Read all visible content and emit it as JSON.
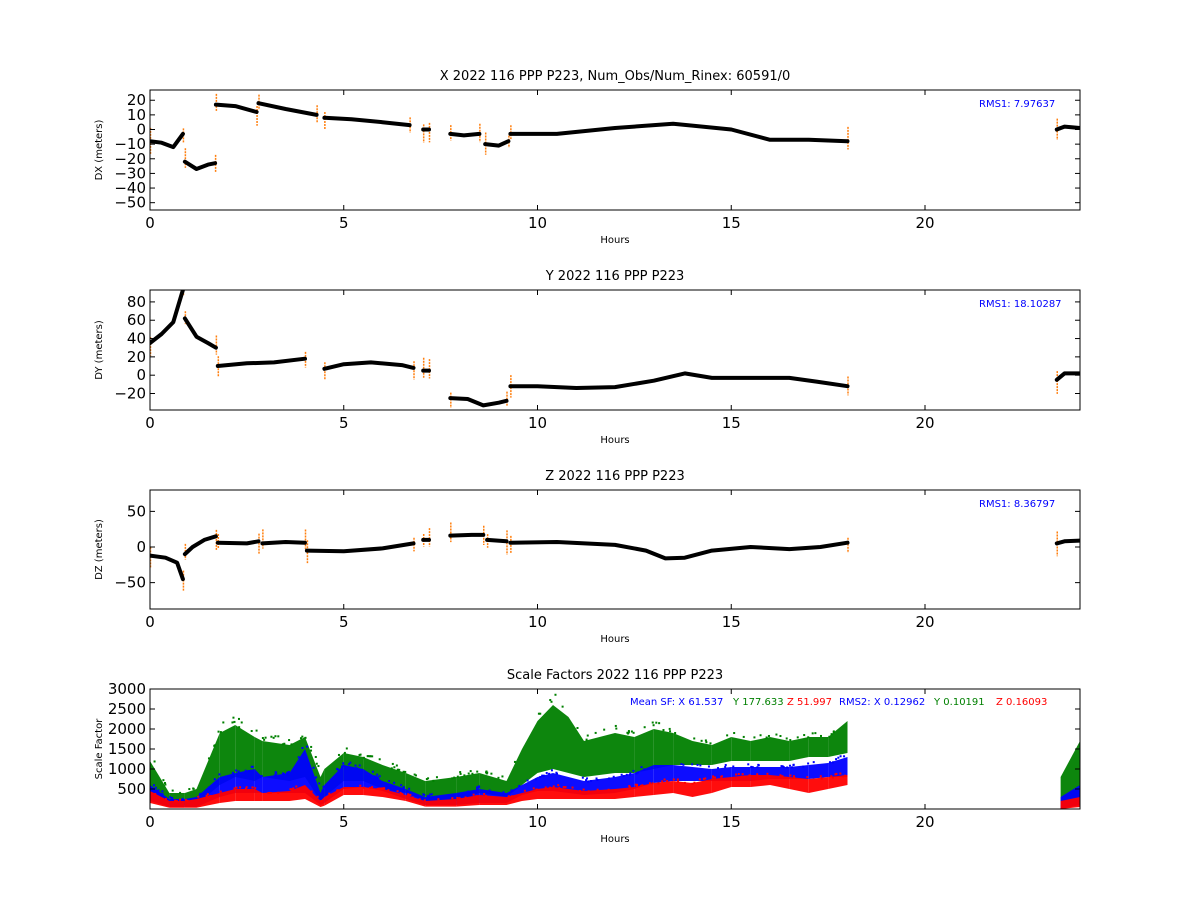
{
  "colors": {
    "fit": "#000000",
    "residual": "#ff7f0e",
    "rms_text": "#0000ff",
    "sf_x": "#0000ff",
    "sf_y": "#008000",
    "sf_z": "#ff0000"
  },
  "chart_data": [
    {
      "type": "scatter",
      "title": "X 2022 116 PPP  P223, Num_Obs/Num_Rinex: 60591/0",
      "xlabel": "Hours",
      "ylabel": "DX (meters)",
      "xlim": [
        0,
        24
      ],
      "ylim": [
        -55,
        27
      ],
      "xticks": [
        0,
        5,
        10,
        15,
        20
      ],
      "xtick_labels": [
        "0",
        "5",
        "10",
        "15",
        "20"
      ],
      "yticks": [
        20,
        10,
        0,
        -10,
        -20,
        -30,
        -40,
        -50
      ],
      "ytick_labels": [
        "20",
        "10",
        "0",
        "−10",
        "−20",
        "−30",
        "−40",
        "−50"
      ],
      "annotation": "RMS1:  7.97637",
      "annotation_color": "#0000ff",
      "series": [
        {
          "x": [
            0,
            0.3,
            0.6,
            0.85
          ],
          "y": [
            -8,
            -9,
            -12,
            -3
          ]
        },
        {
          "x": [
            0.9,
            1.2,
            1.5,
            1.68
          ],
          "y": [
            -22,
            -27,
            -24,
            -23
          ]
        },
        {
          "x": [
            1.7,
            2.2,
            2.75
          ],
          "y": [
            17,
            16,
            12
          ]
        },
        {
          "x": [
            2.8,
            3.5,
            4.3
          ],
          "y": [
            18,
            14,
            10
          ]
        },
        {
          "x": [
            4.5,
            5.2,
            6,
            6.7
          ],
          "y": [
            8,
            7,
            5,
            3
          ]
        },
        {
          "x": [
            7.05,
            7.2
          ],
          "y": [
            0,
            0
          ]
        },
        {
          "x": [
            7.75,
            8.1,
            8.5
          ],
          "y": [
            -3,
            -4,
            -3
          ]
        },
        {
          "x": [
            8.65,
            9.0,
            9.25
          ],
          "y": [
            -10,
            -11,
            -8
          ]
        },
        {
          "x": [
            9.3,
            10.5,
            12,
            13.5,
            15,
            16,
            17,
            18
          ],
          "y": [
            -3,
            -3,
            1,
            4,
            0,
            -7,
            -7,
            -8
          ]
        },
        {
          "x": [
            23.4,
            23.6,
            24
          ],
          "y": [
            0,
            2,
            1
          ]
        }
      ]
    },
    {
      "type": "scatter",
      "title": "Y 2022 116 PPP  P223",
      "xlabel": "Hours",
      "ylabel": "DY (meters)",
      "xlim": [
        0,
        24
      ],
      "ylim": [
        -38,
        93
      ],
      "xticks": [
        0,
        5,
        10,
        15,
        20
      ],
      "xtick_labels": [
        "0",
        "5",
        "10",
        "15",
        "20"
      ],
      "yticks": [
        80,
        60,
        40,
        20,
        0,
        -20
      ],
      "ytick_labels": [
        "80",
        "60",
        "40",
        "20",
        "0",
        "−20"
      ],
      "annotation": "RMS1: 18.10287",
      "annotation_color": "#0000ff",
      "series": [
        {
          "x": [
            0,
            0.3,
            0.6,
            0.85
          ],
          "y": [
            35,
            45,
            58,
            93
          ]
        },
        {
          "x": [
            0.9,
            1.2,
            1.5,
            1.7
          ],
          "y": [
            62,
            42,
            35,
            30
          ]
        },
        {
          "x": [
            1.75,
            2.5,
            3.2,
            4
          ],
          "y": [
            10,
            13,
            14,
            18
          ]
        },
        {
          "x": [
            4.5,
            5,
            5.7,
            6.5,
            6.8
          ],
          "y": [
            7,
            12,
            14,
            11,
            8
          ]
        },
        {
          "x": [
            7.05,
            7.2
          ],
          "y": [
            5,
            5
          ]
        },
        {
          "x": [
            7.75,
            8.2,
            8.6,
            9.0,
            9.2
          ],
          "y": [
            -25,
            -26,
            -33,
            -30,
            -28
          ]
        },
        {
          "x": [
            9.3,
            10,
            11,
            12,
            13,
            13.8,
            14.5,
            15.5,
            16.5,
            17.2,
            18
          ],
          "y": [
            -12,
            -12,
            -14,
            -13,
            -6,
            2,
            -3,
            -3,
            -3,
            -7,
            -12
          ]
        },
        {
          "x": [
            23.4,
            23.6,
            24
          ],
          "y": [
            -5,
            2,
            2
          ]
        }
      ]
    },
    {
      "type": "scatter",
      "title": "Z 2022 116 PPP  P223",
      "xlabel": "Hours",
      "ylabel": "DZ (meters)",
      "xlim": [
        0,
        24
      ],
      "ylim": [
        -87,
        80
      ],
      "xticks": [
        0,
        5,
        10,
        15,
        20
      ],
      "xtick_labels": [
        "0",
        "5",
        "10",
        "15",
        "20"
      ],
      "yticks": [
        50,
        0,
        -50
      ],
      "ytick_labels": [
        "50",
        "0",
        "−50"
      ],
      "annotation": "RMS1:  8.36797",
      "annotation_color": "#0000ff",
      "series": [
        {
          "x": [
            0,
            0.4,
            0.7,
            0.85
          ],
          "y": [
            -12,
            -15,
            -22,
            -45
          ]
        },
        {
          "x": [
            0.9,
            1.1,
            1.4,
            1.7
          ],
          "y": [
            -10,
            0,
            10,
            15
          ]
        },
        {
          "x": [
            1.75,
            2.5,
            2.8
          ],
          "y": [
            6,
            5,
            8
          ]
        },
        {
          "x": [
            2.9,
            3.5,
            4.0
          ],
          "y": [
            5,
            7,
            6
          ]
        },
        {
          "x": [
            4.05,
            5,
            6,
            6.8
          ],
          "y": [
            -5,
            -6,
            -2,
            5
          ]
        },
        {
          "x": [
            7.05,
            7.2
          ],
          "y": [
            10,
            10
          ]
        },
        {
          "x": [
            7.75,
            8.3,
            8.6
          ],
          "y": [
            16,
            17,
            17
          ]
        },
        {
          "x": [
            8.7,
            9.2
          ],
          "y": [
            10,
            8
          ]
        },
        {
          "x": [
            9.3,
            10.5,
            12,
            12.8,
            13.3,
            13.8,
            14.5,
            15.5,
            16.5,
            17.3,
            18
          ],
          "y": [
            6,
            7,
            3,
            -5,
            -16,
            -15,
            -5,
            0,
            -3,
            0,
            6
          ]
        },
        {
          "x": [
            23.4,
            23.6,
            24
          ],
          "y": [
            5,
            8,
            9
          ]
        }
      ]
    },
    {
      "type": "scatter",
      "title": "Scale Factors 2022 116 PPP  P223",
      "xlabel": "Hours",
      "ylabel": "Scale Factor",
      "xlim": [
        0,
        24
      ],
      "ylim": [
        0,
        3000
      ],
      "xticks": [
        0,
        5,
        10,
        15,
        20
      ],
      "xtick_labels": [
        "0",
        "5",
        "10",
        "15",
        "20"
      ],
      "yticks": [
        3000,
        2500,
        2000,
        1500,
        1000,
        500
      ],
      "ytick_labels": [
        "3000",
        "2500",
        "2000",
        "1500",
        "1000",
        "500"
      ],
      "legend_parts": [
        {
          "text": "Mean SF: X  61.537",
          "color": "#0000ff"
        },
        {
          "text": "Y 177.633",
          "color": "#008000"
        },
        {
          "text": "Z  51.997",
          "color": "#ff0000"
        },
        {
          "text": "RMS2: X  0.12962",
          "color": "#0000ff"
        },
        {
          "text": "Y  0.10191",
          "color": "#008000"
        },
        {
          "text": "Z  0.16093",
          "color": "#ff0000"
        }
      ],
      "series": [
        {
          "name": "Y",
          "color": "#008000",
          "x": [
            0,
            0.5,
            0.9,
            1.2,
            1.8,
            2.2,
            2.7,
            2.9,
            3.6,
            4.0,
            4.4,
            4.5,
            5.0,
            5.5,
            6.0,
            6.6,
            7.1,
            7.9,
            8.5,
            9.2,
            9.6,
            10.0,
            10.4,
            10.8,
            11.2,
            12.0,
            12.5,
            13.0,
            13.5,
            14.0,
            14.5,
            15.0,
            15.5,
            16.0,
            16.5,
            17.0,
            17.5,
            18.0,
            23.5,
            24.0
          ],
          "low": [
            400,
            100,
            100,
            100,
            600,
            800,
            700,
            800,
            700,
            800,
            200,
            300,
            700,
            700,
            500,
            400,
            200,
            200,
            400,
            300,
            600,
            900,
            1000,
            900,
            800,
            900,
            900,
            1000,
            1100,
            1100,
            1100,
            1200,
            1200,
            1200,
            1200,
            1300,
            1300,
            1400,
            0,
            200
          ],
          "high": [
            1200,
            400,
            400,
            500,
            1900,
            2100,
            1800,
            1700,
            1600,
            1800,
            800,
            1000,
            1400,
            1300,
            1100,
            900,
            700,
            800,
            900,
            700,
            1500,
            2200,
            2600,
            2300,
            1700,
            1900,
            1800,
            2000,
            1900,
            1700,
            1600,
            1800,
            1700,
            1800,
            1700,
            1800,
            1800,
            2200,
            800,
            1700
          ]
        },
        {
          "name": "X",
          "color": "#0000ff",
          "x": [
            0,
            0.5,
            0.9,
            1.2,
            1.8,
            2.2,
            2.7,
            2.9,
            3.6,
            4.0,
            4.4,
            4.5,
            5.0,
            5.5,
            6.0,
            6.6,
            7.1,
            7.9,
            8.5,
            9.2,
            9.6,
            10.0,
            10.4,
            10.8,
            11.2,
            12.0,
            12.5,
            13.0,
            13.5,
            14.0,
            14.5,
            15.0,
            15.5,
            16.0,
            16.5,
            17.0,
            17.5,
            18.0,
            23.5,
            24.0
          ],
          "low": [
            200,
            50,
            50,
            50,
            300,
            400,
            400,
            400,
            400,
            400,
            100,
            150,
            500,
            550,
            450,
            250,
            100,
            100,
            150,
            150,
            350,
            450,
            450,
            400,
            350,
            400,
            500,
            650,
            700,
            700,
            700,
            700,
            700,
            750,
            750,
            750,
            800,
            800,
            0,
            100
          ],
          "high": [
            600,
            250,
            250,
            300,
            800,
            900,
            1000,
            800,
            900,
            1500,
            400,
            600,
            1100,
            1000,
            700,
            500,
            300,
            400,
            500,
            400,
            600,
            800,
            900,
            800,
            700,
            800,
            900,
            1100,
            1100,
            1050,
            1000,
            1050,
            1050,
            1050,
            1050,
            1100,
            1150,
            1300,
            300,
            600
          ]
        },
        {
          "name": "Z",
          "color": "#ff0000",
          "x": [
            0,
            0.5,
            0.9,
            1.2,
            1.8,
            2.2,
            2.7,
            2.9,
            3.6,
            4.0,
            4.4,
            4.5,
            5.0,
            5.5,
            6.0,
            6.6,
            7.1,
            7.9,
            8.5,
            9.2,
            9.6,
            10.0,
            10.4,
            10.8,
            11.2,
            12.0,
            12.5,
            13.0,
            13.5,
            14.0,
            14.5,
            15.0,
            15.5,
            16.0,
            16.5,
            17.0,
            17.5,
            18.0,
            23.5,
            24.0
          ],
          "low": [
            150,
            30,
            30,
            30,
            150,
            200,
            200,
            200,
            200,
            250,
            50,
            80,
            350,
            350,
            300,
            200,
            60,
            60,
            100,
            100,
            200,
            250,
            250,
            250,
            250,
            250,
            300,
            350,
            400,
            300,
            400,
            550,
            550,
            600,
            500,
            400,
            500,
            600,
            0,
            50
          ],
          "high": [
            450,
            200,
            200,
            250,
            400,
            500,
            500,
            400,
            450,
            600,
            200,
            300,
            550,
            550,
            500,
            350,
            200,
            250,
            350,
            300,
            400,
            500,
            550,
            500,
            450,
            500,
            550,
            650,
            700,
            650,
            750,
            800,
            850,
            850,
            800,
            750,
            800,
            850,
            200,
            300
          ]
        }
      ]
    }
  ]
}
